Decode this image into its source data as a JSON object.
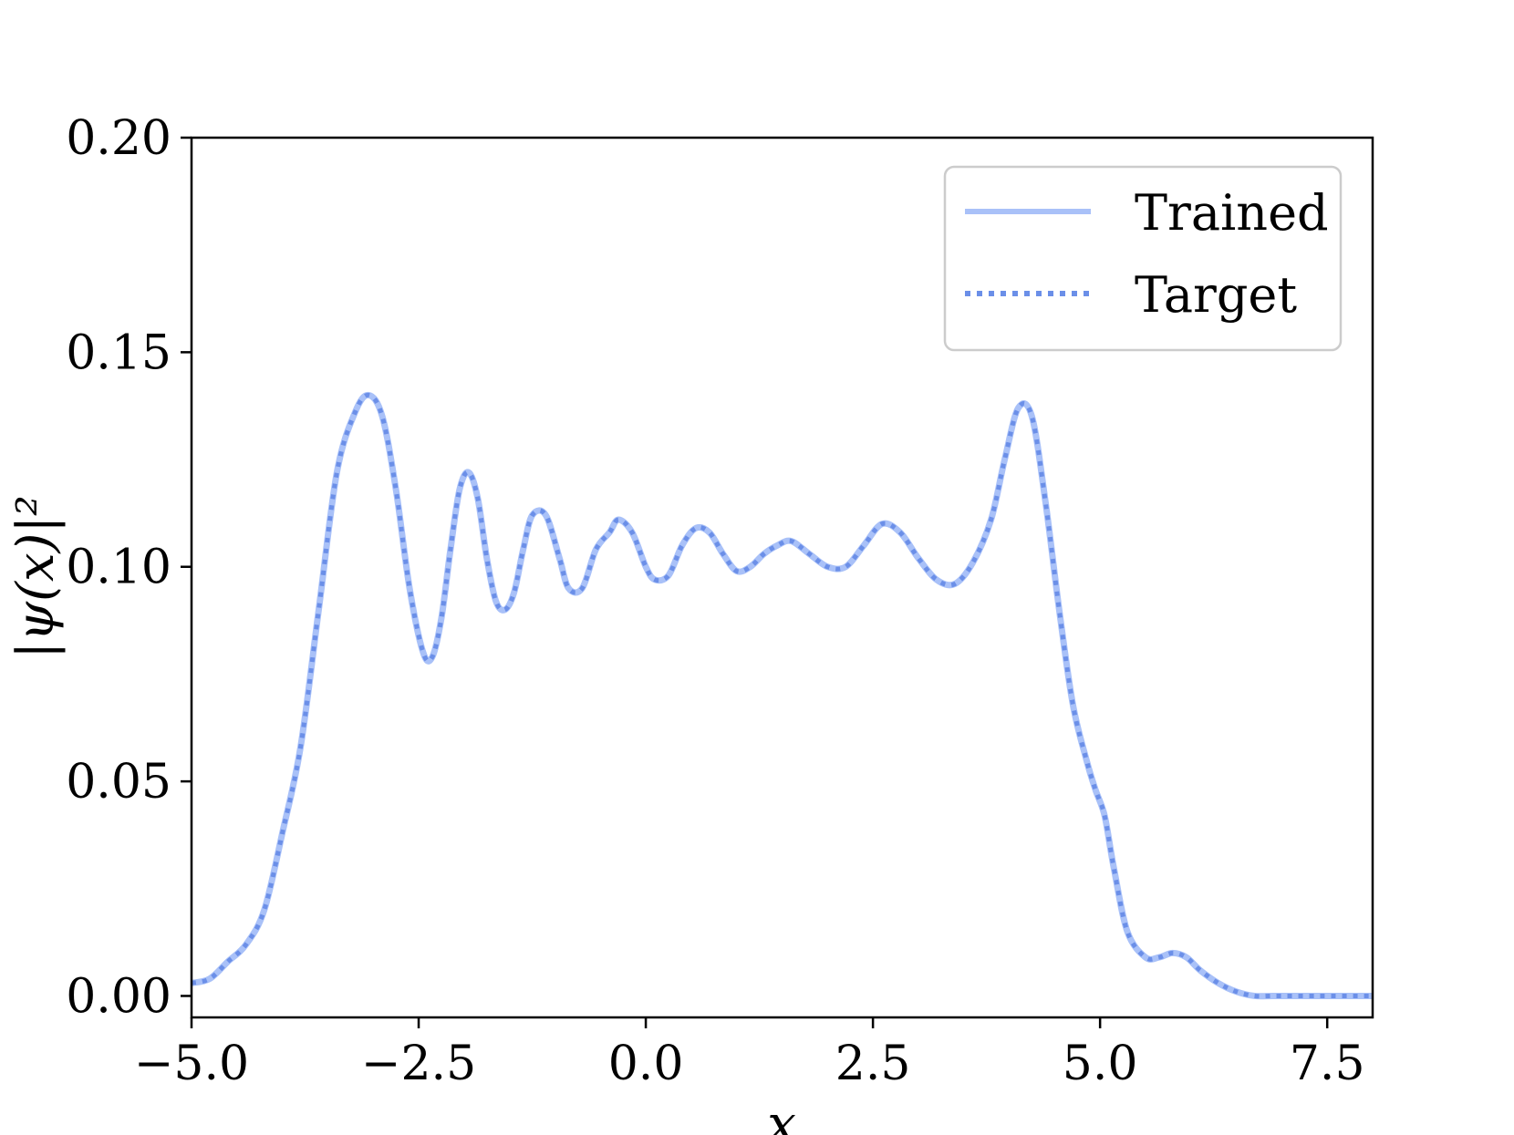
{
  "chart_data": {
    "type": "line",
    "xlabel": "x",
    "ylabel": "|ψ(x)|²",
    "xlim": [
      -5.0,
      8.0
    ],
    "ylim": [
      -0.005,
      0.2
    ],
    "xticks": [
      -5.0,
      -2.5,
      0.0,
      2.5,
      5.0,
      7.5
    ],
    "xtick_labels": [
      "−5.0",
      "−2.5",
      "0.0",
      "2.5",
      "5.0",
      "7.5"
    ],
    "yticks": [
      0.0,
      0.05,
      0.1,
      0.15,
      0.2
    ],
    "ytick_labels": [
      "0.00",
      "0.05",
      "0.10",
      "0.15",
      "0.20"
    ],
    "grid": false,
    "legend_position": "top-right",
    "series": [
      {
        "name": "Trained",
        "style": "solid",
        "color": "#a9c1f8",
        "x": [
          -5.0,
          -4.8,
          -4.6,
          -4.4,
          -4.2,
          -4.0,
          -3.8,
          -3.6,
          -3.4,
          -3.2,
          -3.05,
          -2.9,
          -2.75,
          -2.6,
          -2.45,
          -2.35,
          -2.25,
          -2.15,
          -2.05,
          -1.95,
          -1.85,
          -1.75,
          -1.65,
          -1.55,
          -1.45,
          -1.35,
          -1.25,
          -1.1,
          -0.95,
          -0.85,
          -0.7,
          -0.55,
          -0.4,
          -0.3,
          -0.15,
          0.0,
          0.1,
          0.25,
          0.4,
          0.55,
          0.7,
          0.85,
          1.0,
          1.15,
          1.3,
          1.45,
          1.6,
          1.8,
          2.0,
          2.2,
          2.4,
          2.6,
          2.8,
          3.0,
          3.2,
          3.4,
          3.6,
          3.8,
          3.95,
          4.1,
          4.25,
          4.4,
          4.55,
          4.7,
          4.85,
          4.95,
          5.05,
          5.15,
          5.3,
          5.5,
          5.65,
          5.8,
          5.95,
          6.1,
          6.3,
          6.5,
          6.7,
          6.9,
          7.1,
          7.3,
          7.5,
          7.8,
          8.0
        ],
        "y": [
          0.003,
          0.004,
          0.008,
          0.012,
          0.02,
          0.038,
          0.058,
          0.09,
          0.122,
          0.136,
          0.14,
          0.135,
          0.118,
          0.095,
          0.08,
          0.079,
          0.088,
          0.104,
          0.118,
          0.122,
          0.116,
          0.102,
          0.092,
          0.09,
          0.094,
          0.104,
          0.112,
          0.112,
          0.102,
          0.095,
          0.095,
          0.104,
          0.108,
          0.111,
          0.108,
          0.1,
          0.097,
          0.098,
          0.105,
          0.109,
          0.108,
          0.103,
          0.099,
          0.1,
          0.103,
          0.105,
          0.106,
          0.103,
          0.1,
          0.1,
          0.105,
          0.11,
          0.108,
          0.102,
          0.097,
          0.096,
          0.101,
          0.111,
          0.125,
          0.137,
          0.135,
          0.115,
          0.09,
          0.068,
          0.055,
          0.048,
          0.042,
          0.03,
          0.015,
          0.009,
          0.009,
          0.01,
          0.009,
          0.006,
          0.003,
          0.001,
          0.0,
          0.0,
          0.0,
          0.0,
          0.0,
          0.0,
          0.0
        ]
      },
      {
        "name": "Target",
        "style": "dotted",
        "color": "#6b8fe8",
        "x": [
          -5.0,
          -4.8,
          -4.6,
          -4.4,
          -4.2,
          -4.0,
          -3.8,
          -3.6,
          -3.4,
          -3.2,
          -3.05,
          -2.9,
          -2.75,
          -2.6,
          -2.45,
          -2.35,
          -2.25,
          -2.15,
          -2.05,
          -1.95,
          -1.85,
          -1.75,
          -1.65,
          -1.55,
          -1.45,
          -1.35,
          -1.25,
          -1.1,
          -0.95,
          -0.85,
          -0.7,
          -0.55,
          -0.4,
          -0.3,
          -0.15,
          0.0,
          0.1,
          0.25,
          0.4,
          0.55,
          0.7,
          0.85,
          1.0,
          1.15,
          1.3,
          1.45,
          1.6,
          1.8,
          2.0,
          2.2,
          2.4,
          2.6,
          2.8,
          3.0,
          3.2,
          3.4,
          3.6,
          3.8,
          3.95,
          4.1,
          4.25,
          4.4,
          4.55,
          4.7,
          4.85,
          4.95,
          5.05,
          5.15,
          5.3,
          5.5,
          5.65,
          5.8,
          5.95,
          6.1,
          6.3,
          6.5,
          6.7,
          6.9,
          7.1,
          7.3,
          7.5,
          7.8,
          8.0
        ],
        "y": [
          0.003,
          0.004,
          0.008,
          0.012,
          0.02,
          0.038,
          0.058,
          0.09,
          0.122,
          0.136,
          0.14,
          0.135,
          0.118,
          0.095,
          0.08,
          0.079,
          0.088,
          0.104,
          0.118,
          0.122,
          0.116,
          0.102,
          0.092,
          0.09,
          0.094,
          0.104,
          0.112,
          0.112,
          0.102,
          0.095,
          0.095,
          0.104,
          0.108,
          0.111,
          0.108,
          0.1,
          0.097,
          0.098,
          0.105,
          0.109,
          0.108,
          0.103,
          0.099,
          0.1,
          0.103,
          0.105,
          0.106,
          0.103,
          0.1,
          0.1,
          0.105,
          0.11,
          0.108,
          0.102,
          0.097,
          0.096,
          0.101,
          0.111,
          0.125,
          0.137,
          0.135,
          0.115,
          0.09,
          0.068,
          0.055,
          0.048,
          0.042,
          0.03,
          0.015,
          0.009,
          0.009,
          0.01,
          0.009,
          0.006,
          0.003,
          0.001,
          0.0,
          0.0,
          0.0,
          0.0,
          0.0,
          0.0,
          0.0
        ]
      }
    ]
  }
}
